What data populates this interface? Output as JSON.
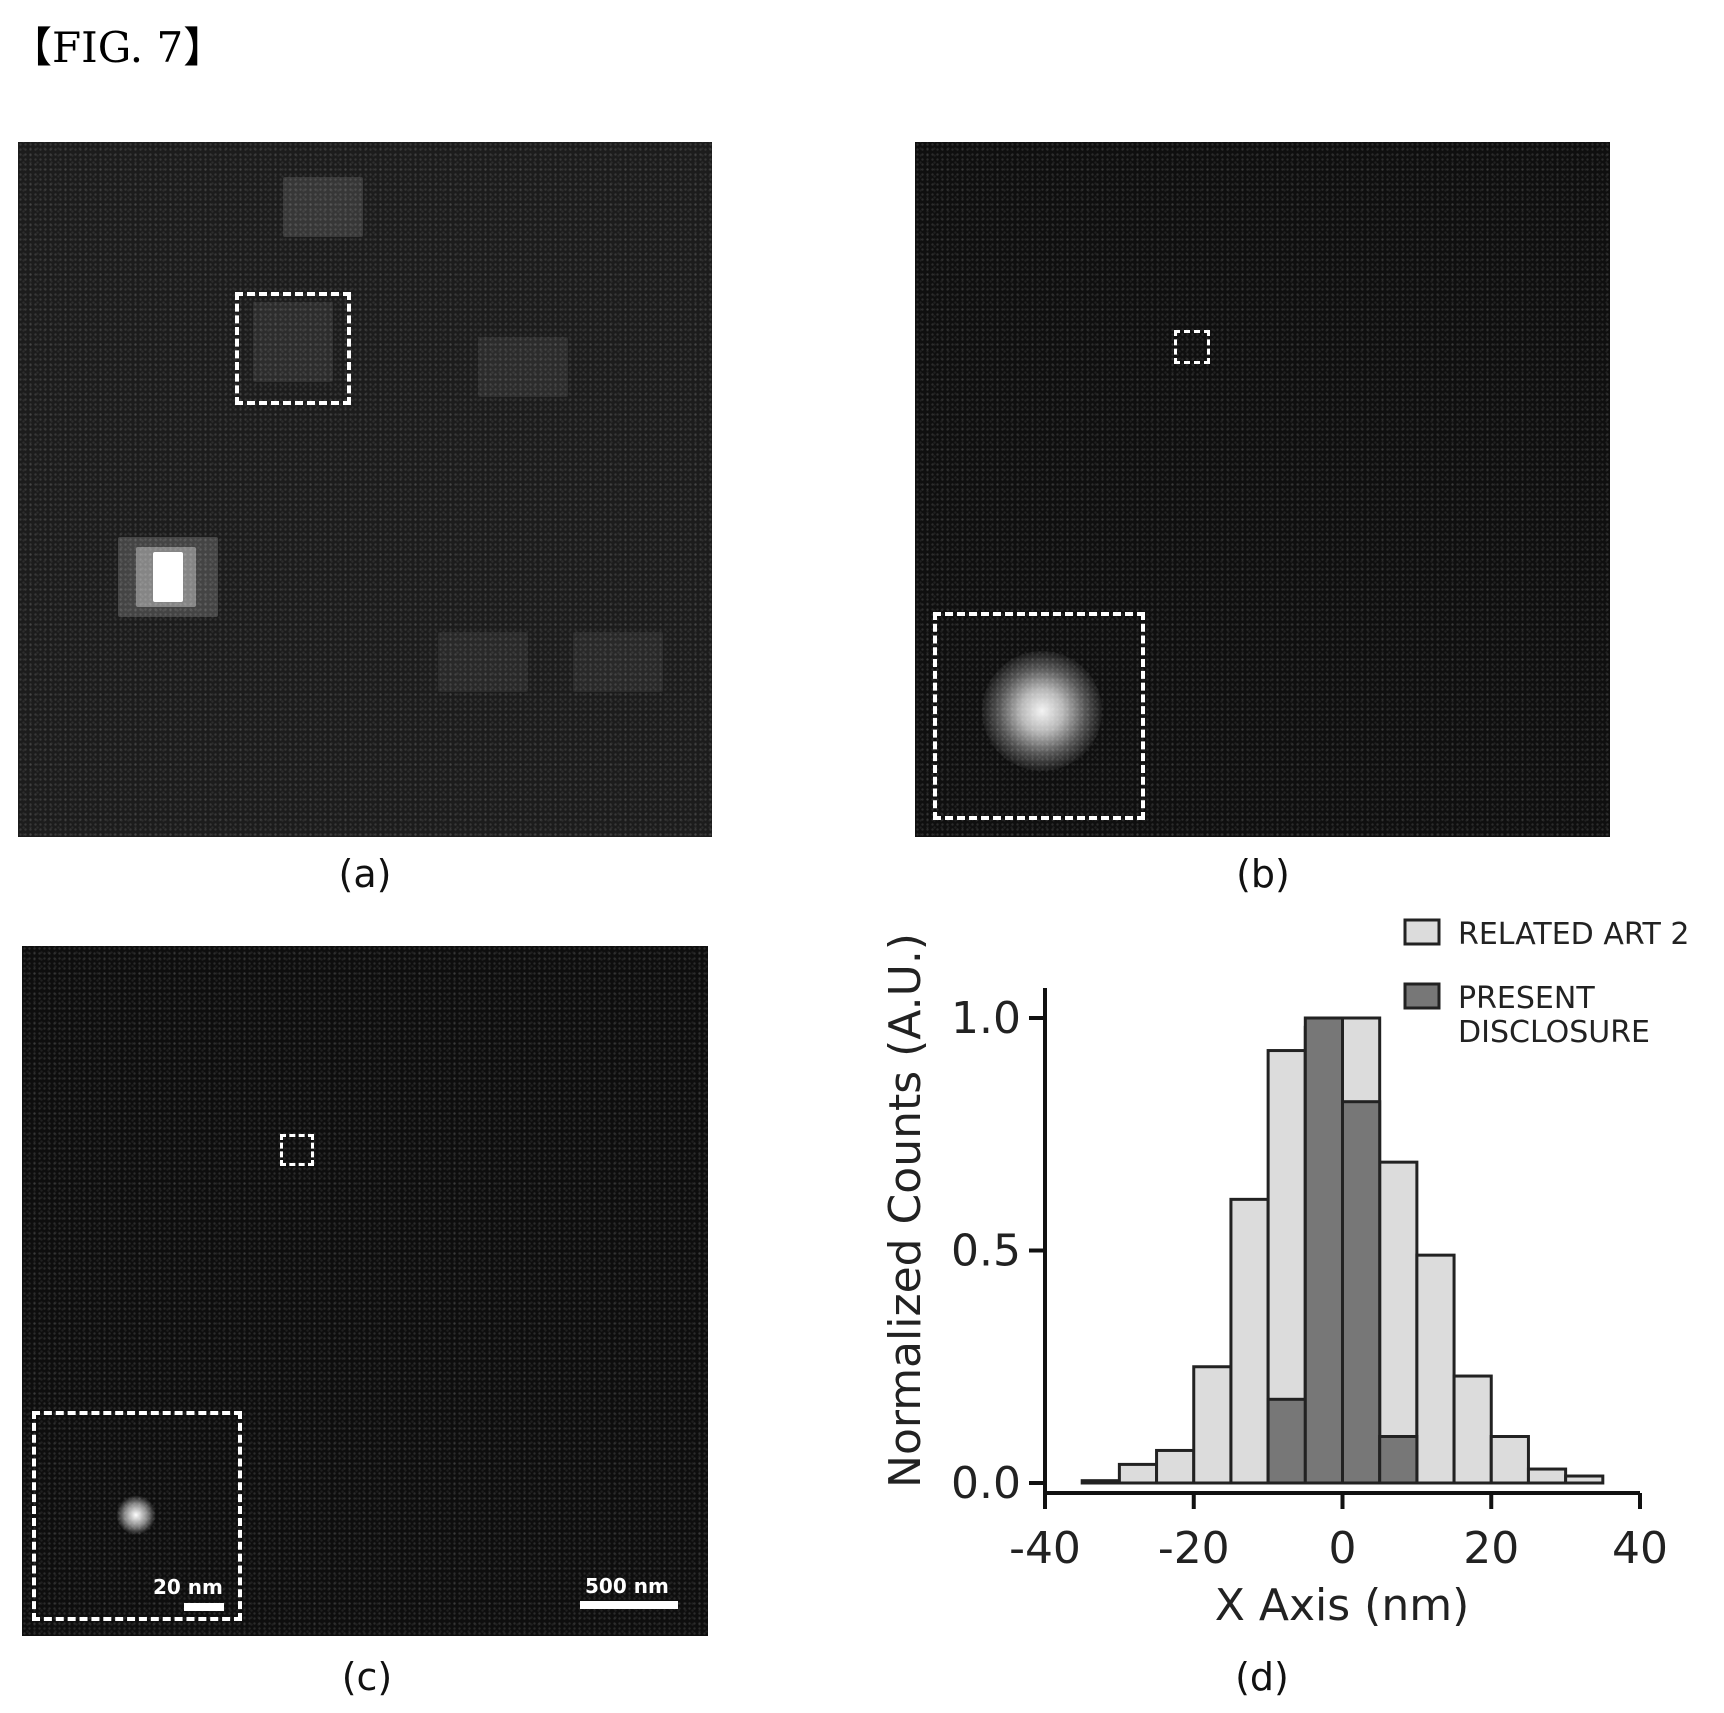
{
  "figure_label": "【FIG. 7】",
  "panels": {
    "a": {
      "caption": "(a)"
    },
    "b": {
      "caption": "(b)"
    },
    "c": {
      "caption": "(c)",
      "inset_scale": "20 nm",
      "scale": "500 nm"
    },
    "d": {
      "caption": "(d)"
    }
  },
  "chart_data": {
    "type": "bar",
    "xlabel": "X Axis (nm)",
    "ylabel": "Normalized Counts (A.U.)",
    "xlim": [
      -40,
      40
    ],
    "ylim": [
      0,
      1.0
    ],
    "xticks": [
      "-40",
      "-20",
      "0",
      "20",
      "40"
    ],
    "yticks": [
      "0.0",
      "0.5",
      "1.0"
    ],
    "legend_position": "top-right",
    "series": [
      {
        "name": "RELATED ART 2",
        "color": "#dcdcdc",
        "bin_width": 5,
        "bin_centers": [
          -32.5,
          -27.5,
          -22.5,
          -17.5,
          -12.5,
          -7.5,
          -2.5,
          2.5,
          7.5,
          12.5,
          17.5,
          22.5,
          27.5,
          32.5
        ],
        "values": [
          0.005,
          0.04,
          0.07,
          0.25,
          0.61,
          0.93,
          0.98,
          1.0,
          0.69,
          0.49,
          0.23,
          0.1,
          0.03,
          0.015
        ]
      },
      {
        "name": "PRESENT DISCLOSURE",
        "color": "#777777",
        "bin_width": 5,
        "bin_centers": [
          -7.5,
          -2.5,
          2.5,
          7.5
        ],
        "values": [
          0.18,
          1.0,
          0.82,
          0.1
        ]
      }
    ]
  }
}
